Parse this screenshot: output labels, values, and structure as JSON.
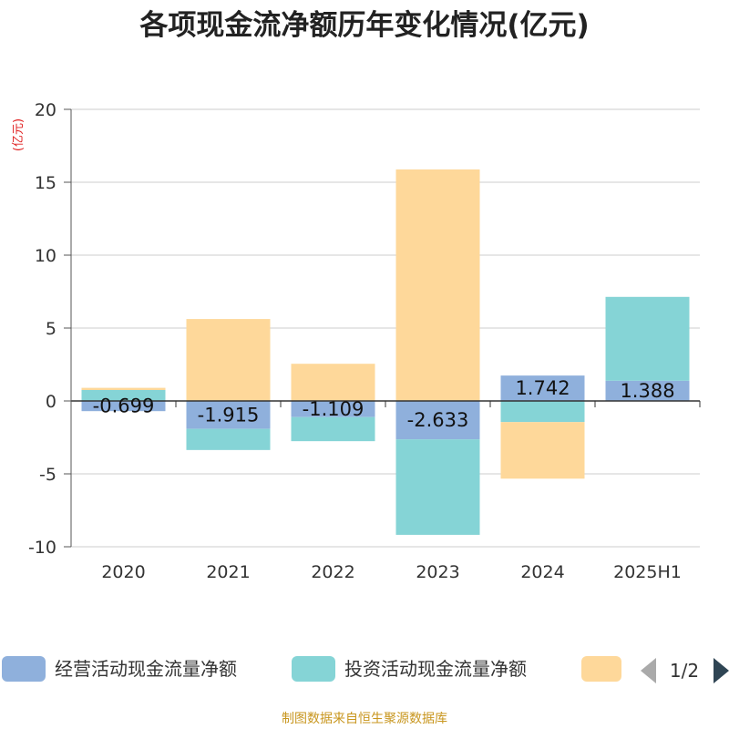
{
  "chart_data": {
    "type": "bar",
    "stacked": true,
    "title": "各项现金流净额历年变化情况(亿元)",
    "unit_label": "(亿元)",
    "categories": [
      "2020",
      "2021",
      "2022",
      "2023",
      "2024",
      "2025H1"
    ],
    "ylim": [
      -10,
      20
    ],
    "yticks": [
      -10,
      -5,
      0,
      5,
      10,
      15,
      20
    ],
    "grid": true,
    "legend_position": "bottom",
    "series": [
      {
        "name": "经营活动现金流量净额",
        "color": "#8fb0dc",
        "values": [
          -0.699,
          -1.915,
          -1.109,
          -2.633,
          1.742,
          1.388
        ],
        "labels": [
          "-0.699",
          "-1.915",
          "-1.109",
          "-2.633",
          "1.742",
          "1.388"
        ]
      },
      {
        "name": "投资活动现金流量净额",
        "color": "#85d4d6",
        "values": [
          0.75,
          -1.45,
          -1.65,
          -6.55,
          -1.45,
          5.75
        ]
      },
      {
        "name": "",
        "color": "#fed89a",
        "values": [
          0.15,
          5.62,
          2.55,
          15.88,
          -3.88,
          0
        ]
      }
    ]
  },
  "legend": {
    "pager": "1/2",
    "prev_icon": "triangle-left-icon",
    "next_icon": "triangle-right-icon"
  },
  "footer": {
    "source": "制图数据来自恒生聚源数据库"
  }
}
